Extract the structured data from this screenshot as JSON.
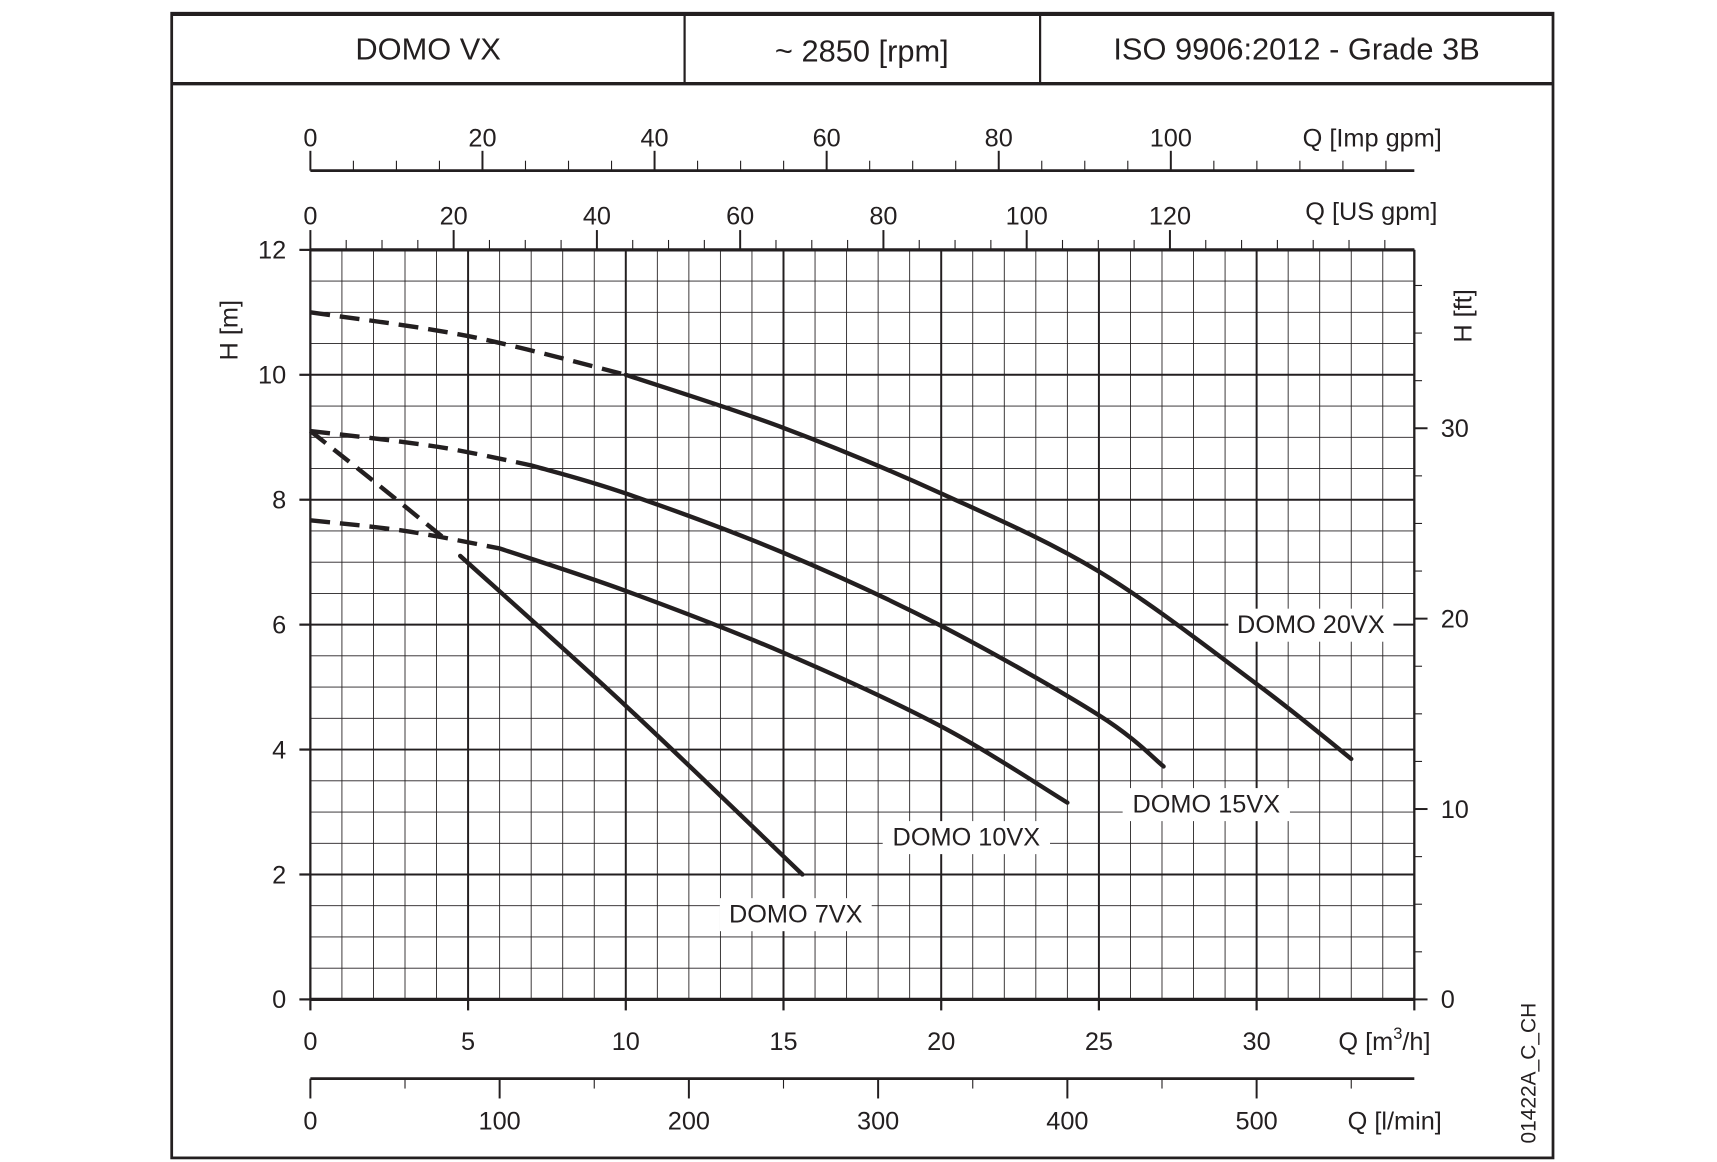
{
  "header": {
    "model": "DOMO VX",
    "speed": "~ 2850 [rpm]",
    "standard": "ISO 9906:2012 - Grade 3B"
  },
  "chart_data": {
    "type": "line",
    "title": "DOMO VX",
    "xlabel": "Q [m3/h]",
    "xlabel_parts": {
      "pre": "Q [m",
      "sup": "3",
      "post": "/h]"
    },
    "ylabel": "H [m]",
    "xlim": [
      0,
      35
    ],
    "ylim": [
      0,
      12
    ],
    "xticks": [
      0,
      5,
      10,
      15,
      20,
      25,
      30
    ],
    "yticks": [
      0,
      2,
      4,
      6,
      8,
      10,
      12
    ],
    "grid": true,
    "secondary_axes": {
      "imp_gpm": {
        "label": "Q [Imp gpm]",
        "ticks": [
          0,
          20,
          40,
          60,
          80,
          100
        ],
        "m3h_per_unit": 0.2728
      },
      "us_gpm": {
        "label": "Q [US gpm]",
        "ticks": [
          0,
          20,
          40,
          60,
          80,
          100,
          120
        ],
        "m3h_per_unit": 0.2271
      },
      "l_min": {
        "label": "Q [l/min]",
        "ticks": [
          0,
          100,
          200,
          300,
          400,
          500
        ],
        "m3h_per_unit": 0.06
      },
      "h_ft": {
        "label": "H [ft]",
        "ticks": [
          0,
          10,
          20,
          30
        ],
        "m_per_unit": 0.3048
      }
    },
    "series": [
      {
        "name": "DOMO 20VX",
        "dashed": [
          [
            0,
            11.0
          ],
          [
            5,
            10.62
          ],
          [
            10,
            10.0
          ]
        ],
        "solid": [
          [
            10,
            10.0
          ],
          [
            15,
            9.15
          ],
          [
            20,
            8.1
          ],
          [
            25,
            6.85
          ],
          [
            30,
            5.05
          ],
          [
            33.0,
            3.85
          ]
        ]
      },
      {
        "name": "DOMO 15VX",
        "dashed": [
          [
            0,
            9.1
          ],
          [
            4,
            8.85
          ],
          [
            7,
            8.55
          ]
        ],
        "solid": [
          [
            7,
            8.55
          ],
          [
            10,
            8.1
          ],
          [
            15,
            7.15
          ],
          [
            20,
            5.98
          ],
          [
            25,
            4.55
          ],
          [
            27.05,
            3.73
          ]
        ]
      },
      {
        "name": "DOMO 10VX",
        "dashed": [
          [
            0,
            7.67
          ],
          [
            3,
            7.5
          ],
          [
            6,
            7.22
          ]
        ],
        "solid": [
          [
            6,
            7.22
          ],
          [
            10,
            6.54
          ],
          [
            15,
            5.55
          ],
          [
            20,
            4.37
          ],
          [
            24.0,
            3.15
          ]
        ]
      },
      {
        "name": "DOMO 7VX",
        "dashed": [
          [
            0,
            9.1
          ],
          [
            2,
            8.3
          ],
          [
            4.2,
            7.4
          ]
        ],
        "solid": [
          [
            4.75,
            7.1
          ],
          [
            10,
            4.7
          ],
          [
            15.6,
            2.0
          ]
        ]
      }
    ],
    "annotation": "01422A_C_CH"
  }
}
